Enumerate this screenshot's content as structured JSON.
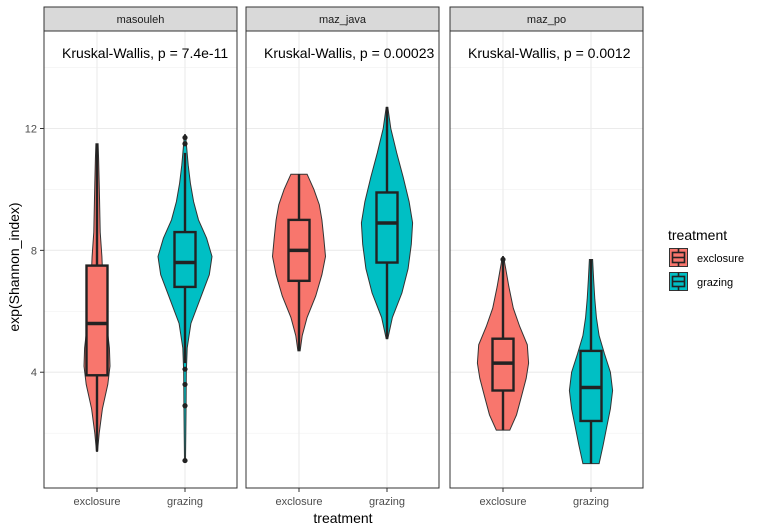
{
  "chart_data": {
    "type": "violin",
    "facets": [
      "masouleh",
      "maz_java",
      "maz_po"
    ],
    "categories": [
      "exclosure",
      "grazing"
    ],
    "xlabel": "treatment",
    "ylabel": "exp(Shannon_index)",
    "ylim": [
      0.2,
      15.2
    ],
    "yticks": [
      4,
      8,
      12
    ],
    "grid": true,
    "legend": {
      "title": "treatment",
      "position": "right",
      "items": [
        {
          "label": "exclosure",
          "color": "#F8766D"
        },
        {
          "label": "grazing",
          "color": "#00BFC4"
        }
      ]
    },
    "annotations": [
      "Kruskal-Wallis, p = 7.4e-11",
      "Kruskal-Wallis, p = 0.00023",
      "Kruskal-Wallis, p = 0.0012"
    ],
    "panels": [
      {
        "facet": "masouleh",
        "groups": [
          {
            "treatment": "exclosure",
            "color": "#F8766D",
            "min": 1.4,
            "q1": 3.9,
            "median": 5.6,
            "q3": 7.5,
            "max": 11.5,
            "whisker_low": 1.4,
            "whisker_high": 11.5,
            "outliers": [],
            "density": [
              [
                1.4,
                0.02
              ],
              [
                2.0,
                0.08
              ],
              [
                2.8,
                0.2
              ],
              [
                3.6,
                0.4
              ],
              [
                4.2,
                0.48
              ],
              [
                4.8,
                0.46
              ],
              [
                5.4,
                0.38
              ],
              [
                6.2,
                0.28
              ],
              [
                7.0,
                0.22
              ],
              [
                7.8,
                0.18
              ],
              [
                8.6,
                0.12
              ],
              [
                9.4,
                0.1
              ],
              [
                10.2,
                0.08
              ],
              [
                11.0,
                0.06
              ],
              [
                11.5,
                0.04
              ]
            ]
          },
          {
            "treatment": "grazing",
            "color": "#00BFC4",
            "min": 1.1,
            "q1": 6.8,
            "median": 7.6,
            "q3": 8.6,
            "max": 11.7,
            "whisker_low": 4.3,
            "whisker_high": 11.2,
            "outliers": [
              1.1,
              2.9,
              3.6,
              4.1,
              11.5,
              11.7
            ],
            "density": [
              [
                1.1,
                0.02
              ],
              [
                2.0,
                0.03
              ],
              [
                3.0,
                0.04
              ],
              [
                4.0,
                0.05
              ],
              [
                4.8,
                0.08
              ],
              [
                5.6,
                0.22
              ],
              [
                6.4,
                0.56
              ],
              [
                7.2,
                0.9
              ],
              [
                7.8,
                1.0
              ],
              [
                8.4,
                0.8
              ],
              [
                9.0,
                0.5
              ],
              [
                9.6,
                0.32
              ],
              [
                10.2,
                0.2
              ],
              [
                10.8,
                0.12
              ],
              [
                11.4,
                0.06
              ],
              [
                11.8,
                0.02
              ]
            ]
          }
        ]
      },
      {
        "facet": "maz_java",
        "groups": [
          {
            "treatment": "exclosure",
            "color": "#F8766D",
            "min": 4.7,
            "q1": 7.0,
            "median": 8.0,
            "q3": 9.0,
            "max": 10.5,
            "whisker_low": 4.7,
            "whisker_high": 10.5,
            "outliers": [],
            "density": [
              [
                4.7,
                0.04
              ],
              [
                5.2,
                0.12
              ],
              [
                5.8,
                0.3
              ],
              [
                6.5,
                0.62
              ],
              [
                7.2,
                0.85
              ],
              [
                7.8,
                0.98
              ],
              [
                8.4,
                0.92
              ],
              [
                9.0,
                0.85
              ],
              [
                9.5,
                0.75
              ],
              [
                10.0,
                0.55
              ],
              [
                10.5,
                0.3
              ]
            ]
          },
          {
            "treatment": "grazing",
            "color": "#00BFC4",
            "min": 5.1,
            "q1": 7.6,
            "median": 8.9,
            "q3": 9.9,
            "max": 12.7,
            "whisker_low": 5.1,
            "whisker_high": 12.7,
            "outliers": [],
            "density": [
              [
                5.1,
                0.03
              ],
              [
                5.8,
                0.2
              ],
              [
                6.6,
                0.55
              ],
              [
                7.4,
                0.78
              ],
              [
                8.2,
                0.9
              ],
              [
                8.9,
                0.95
              ],
              [
                9.6,
                0.82
              ],
              [
                10.4,
                0.6
              ],
              [
                11.2,
                0.36
              ],
              [
                12.0,
                0.14
              ],
              [
                12.7,
                0.03
              ]
            ]
          }
        ]
      },
      {
        "facet": "maz_po",
        "groups": [
          {
            "treatment": "exclosure",
            "color": "#F8766D",
            "min": 2.1,
            "q1": 3.4,
            "median": 4.3,
            "q3": 5.1,
            "max": 7.7,
            "whisker_low": 2.1,
            "whisker_high": 7.7,
            "outliers": [
              7.7
            ],
            "density": [
              [
                2.1,
                0.25
              ],
              [
                2.6,
                0.5
              ],
              [
                3.2,
                0.68
              ],
              [
                3.8,
                0.86
              ],
              [
                4.3,
                0.95
              ],
              [
                4.9,
                0.9
              ],
              [
                5.5,
                0.62
              ],
              [
                6.1,
                0.38
              ],
              [
                6.8,
                0.22
              ],
              [
                7.4,
                0.1
              ],
              [
                7.8,
                0.02
              ]
            ]
          },
          {
            "treatment": "grazing",
            "color": "#00BFC4",
            "min": 1.0,
            "q1": 2.4,
            "median": 3.5,
            "q3": 4.7,
            "max": 7.7,
            "whisker_low": 1.0,
            "whisker_high": 7.7,
            "outliers": [],
            "density": [
              [
                1.0,
                0.3
              ],
              [
                1.6,
                0.45
              ],
              [
                2.2,
                0.58
              ],
              [
                2.8,
                0.72
              ],
              [
                3.4,
                0.8
              ],
              [
                4.0,
                0.72
              ],
              [
                4.6,
                0.5
              ],
              [
                5.2,
                0.3
              ],
              [
                5.8,
                0.2
              ],
              [
                6.4,
                0.14
              ],
              [
                7.0,
                0.1
              ],
              [
                7.7,
                0.06
              ]
            ]
          }
        ]
      }
    ]
  }
}
